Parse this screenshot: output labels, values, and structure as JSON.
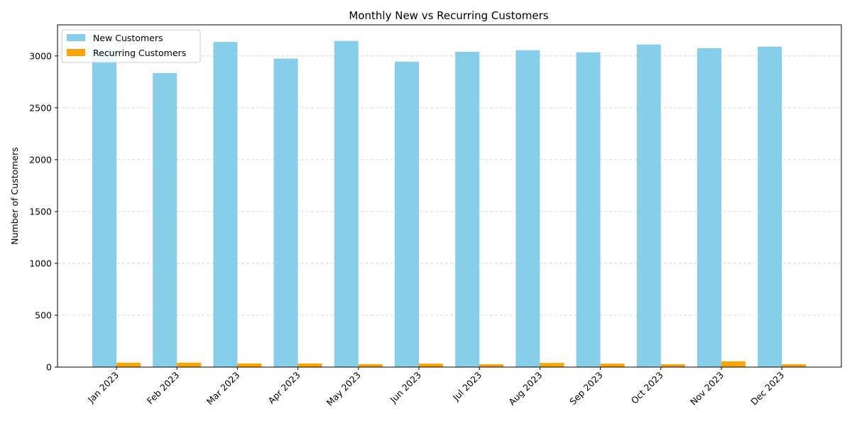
{
  "chart_data": {
    "type": "bar",
    "title": "Monthly New vs Recurring Customers",
    "xlabel": "",
    "ylabel": "Number of Customers",
    "categories": [
      "Jan 2023",
      "Feb 2023",
      "Mar 2023",
      "Apr 2023",
      "May 2023",
      "Jun 2023",
      "Jul 2023",
      "Aug 2023",
      "Sep 2023",
      "Oct 2023",
      "Nov 2023",
      "Dec 2023"
    ],
    "series": [
      {
        "name": "New Customers",
        "color": "#87ceeb",
        "values": [
          3060,
          2835,
          3135,
          2975,
          3145,
          2945,
          3040,
          3055,
          3035,
          3110,
          3075,
          3090
        ]
      },
      {
        "name": "Recurring Customers",
        "color": "#ffa500",
        "values": [
          42,
          42,
          35,
          35,
          28,
          33,
          27,
          40,
          33,
          27,
          55,
          27
        ]
      }
    ],
    "ylim": [
      0,
      3300
    ],
    "yticks": [
      0,
      500,
      1000,
      1500,
      2000,
      2500,
      3000
    ],
    "grid": "y-dashed",
    "legend_position": "upper left"
  }
}
